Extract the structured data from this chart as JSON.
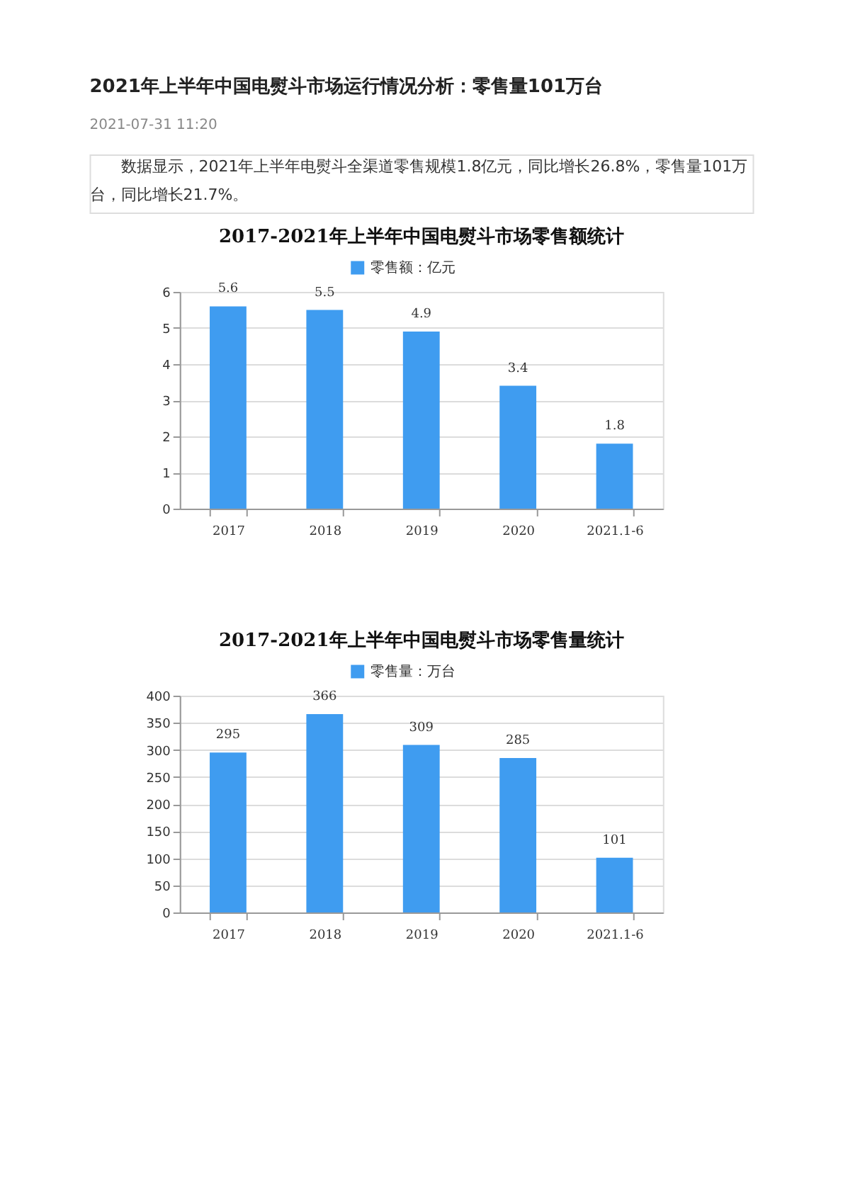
{
  "chart_data": [
    {
      "type": "other",
      "title": "2021年上半年中国电熨斗市场运行情况分析：零售量101万台",
      "subtitle": "2021-07-31 11:20",
      "annotations": [
        "数据显示，2021年上半年电熨斗全渠道零售规模1.8亿元，同比增长26.8%，零售量101万台，同比增长21.7%。"
      ]
    },
    {
      "type": "bar",
      "title": "2017-2021年上半年中国电熨斗市场零售额统计",
      "categories": [
        "2017",
        "2018",
        "2019",
        "2020",
        "2021.1-6"
      ],
      "series": [
        {
          "name": "零售额：亿元",
          "color": "#3f9cf0",
          "values": [
            5.6,
            5.5,
            4.9,
            3.4,
            1.8
          ]
        }
      ],
      "ylim": [
        0,
        6
      ],
      "yticks": [
        0,
        1,
        2,
        3,
        4,
        5,
        6
      ],
      "grid": "y",
      "legend": "top",
      "data_labels": true
    },
    {
      "type": "bar",
      "title": "2017-2021年上半年中国电熨斗市场零售量统计",
      "categories": [
        "2017",
        "2018",
        "2019",
        "2020",
        "2021.1-6"
      ],
      "series": [
        {
          "name": "零售量：万台",
          "color": "#3f9cf0",
          "values": [
            295,
            366,
            309,
            285,
            101
          ]
        }
      ],
      "ylim": [
        0,
        400
      ],
      "yticks": [
        0,
        50,
        100,
        150,
        200,
        250,
        300,
        350,
        400
      ],
      "grid": "y",
      "legend": "top",
      "data_labels": true
    }
  ]
}
